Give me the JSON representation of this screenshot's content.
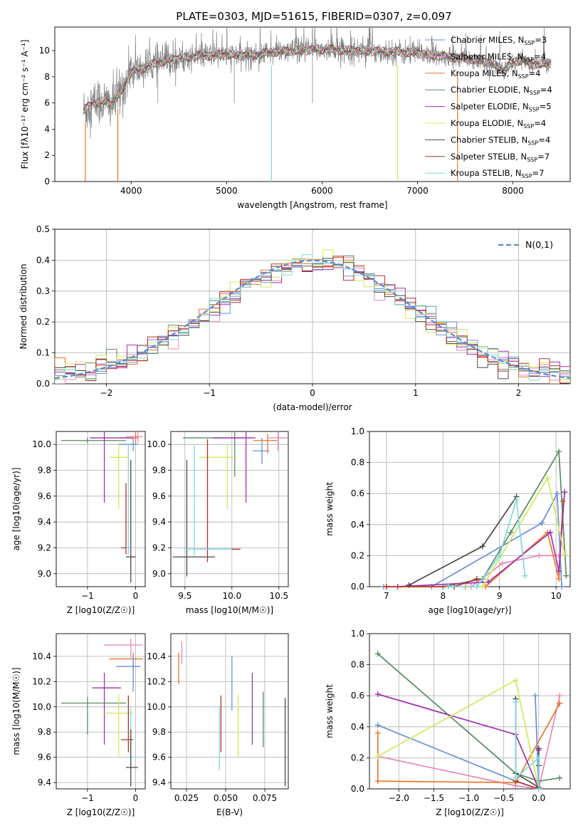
{
  "figure_title": "PLATE=0303, MJD=51615, FIBERID=0307, z=0.097",
  "colors": {
    "c1": "#6a8fd8",
    "c2": "#e887bd",
    "c3": "#e5782a",
    "c4": "#5b8a63",
    "c5": "#a130b0",
    "c6": "#d4e85a",
    "c7": "#4a4a4a",
    "c8": "#b0322b",
    "c9": "#80d8de",
    "data": "#808080",
    "normal": "#5b88d6"
  },
  "chart_data": [
    {
      "id": "spectrum",
      "type": "line",
      "xlabel": "wavelength [Angstrom, rest frame]",
      "ylabel": "Flux [fλ10⁻¹⁷ erg cm⁻² s⁻¹ A⁻¹]",
      "xlim": [
        3200,
        8600
      ],
      "ylim": [
        0,
        11.8
      ],
      "xticks": [
        4000,
        5000,
        6000,
        7000,
        8000
      ],
      "yticks": [
        0,
        2,
        4,
        6,
        8,
        10
      ],
      "grid": false,
      "legend_position": "right",
      "legend": [
        {
          "label": "Chabrier MILES, NSSP=3",
          "color": "c1"
        },
        {
          "label": "Salpeter MILES, NSSP=4",
          "color": "c2"
        },
        {
          "label": "Kroupa MILES, NSSP=4",
          "color": "c3"
        },
        {
          "label": "Chabrier ELODIE, NSSP=4",
          "color": "c4"
        },
        {
          "label": "Salpeter ELODIE, NSSP=5",
          "color": "c5"
        },
        {
          "label": "Kroupa ELODIE, NSSP=4",
          "color": "c6"
        },
        {
          "label": "Chabrier STELIB, NSSP=4",
          "color": "c7"
        },
        {
          "label": "Salpeter STELIB, NSSP=7",
          "color": "c8"
        },
        {
          "label": "Kroupa STELIB, NSSP=7",
          "color": "c9"
        }
      ],
      "spectrum_range": [
        3500,
        8400
      ],
      "continuum": [
        [
          3500,
          5.4
        ],
        [
          3600,
          6.0
        ],
        [
          3700,
          6.1
        ],
        [
          3800,
          5.9
        ],
        [
          3900,
          7.0
        ],
        [
          4000,
          8.3
        ],
        [
          4200,
          8.9
        ],
        [
          4400,
          9.3
        ],
        [
          4700,
          9.6
        ],
        [
          5000,
          9.7
        ],
        [
          5200,
          9.6
        ],
        [
          5500,
          9.9
        ],
        [
          6000,
          10.1
        ],
        [
          6400,
          10.0
        ],
        [
          6800,
          9.9
        ],
        [
          7000,
          9.8
        ],
        [
          7200,
          9.6
        ],
        [
          7500,
          9.4
        ],
        [
          7700,
          9.2
        ],
        [
          7800,
          8.9
        ],
        [
          7900,
          8.5
        ],
        [
          8000,
          9.1
        ],
        [
          8100,
          9.3
        ],
        [
          8200,
          8.9
        ],
        [
          8300,
          9.0
        ],
        [
          8400,
          9.1
        ]
      ],
      "model_dips": [
        {
          "x": 3520,
          "color": "c3"
        },
        {
          "x": 3860,
          "color": "c3"
        },
        {
          "x": 5470,
          "color": "c9"
        },
        {
          "x": 6790,
          "color": "c6"
        },
        {
          "x": 7420,
          "color": "c3"
        }
      ]
    },
    {
      "id": "residual_hist",
      "type": "histogram",
      "xlabel": "(data-model)/error",
      "ylabel": "Normed distribution",
      "xlim": [
        -2.5,
        2.5
      ],
      "ylim": [
        0,
        0.5
      ],
      "xticks": [
        -2,
        -1,
        0,
        1,
        2
      ],
      "yticks": [
        0,
        0.1,
        0.2,
        0.3,
        0.4,
        0.5
      ],
      "grid": true,
      "bin_width": 0.1,
      "reference_curve": "N(0,1)",
      "legend_position": "top-right",
      "legend": [
        {
          "label": "N(0,1)",
          "color": "normal",
          "style": "dashed"
        }
      ]
    },
    {
      "id": "age_vs_Z",
      "type": "errorbar",
      "xlabel": "Z [log10(Z/Z☉)]",
      "ylabel": "age  [log10(age/yr)]",
      "xlim": [
        -1.65,
        0.2
      ],
      "ylim": [
        8.9,
        10.1
      ],
      "xticks": [
        -1,
        0
      ],
      "yticks": [
        9.0,
        9.2,
        9.4,
        9.6,
        9.8,
        10.0
      ],
      "grid": true,
      "points": [
        {
          "color": "c1",
          "x": -0.05,
          "xl": 0.3,
          "xh": 0.1,
          "y": 10.0,
          "yl": 0.05,
          "yh": 0.05
        },
        {
          "color": "c2",
          "x": 0.05,
          "xl": 0.25,
          "xh": 0.1,
          "y": 10.06,
          "yl": 0.05,
          "yh": 0.05
        },
        {
          "color": "c3",
          "x": 0.0,
          "xl": 0.3,
          "xh": 0.05,
          "y": 10.05,
          "yl": 0.05,
          "yh": 0.05
        },
        {
          "color": "c4",
          "x": -1.0,
          "xl": 0.55,
          "xh": 0.8,
          "y": 10.03,
          "yl": 0.02,
          "yh": 0.02
        },
        {
          "color": "c5",
          "x": -0.65,
          "xl": 0.3,
          "xh": 0.6,
          "y": 10.05,
          "yl": 0.5,
          "yh": 0.05
        },
        {
          "color": "c6",
          "x": -0.35,
          "xl": 0.2,
          "xh": 0.2,
          "y": 9.9,
          "yl": 0.4,
          "yh": 0.1
        },
        {
          "color": "c7",
          "x": -0.1,
          "xl": 0.1,
          "xh": 0.1,
          "y": 9.13,
          "yl": 0.2,
          "yh": 0.75
        },
        {
          "color": "c8",
          "x": -0.2,
          "xl": 0.1,
          "xh": 0.1,
          "y": 9.2,
          "yl": 0.05,
          "yh": 0.5
        },
        {
          "color": "c9",
          "x": -0.15,
          "xl": 0.05,
          "xh": 0.05,
          "y": 9.2,
          "yl": 0.05,
          "yh": 0.8
        }
      ]
    },
    {
      "id": "age_vs_mass",
      "type": "errorbar",
      "xlabel": "mass [log10(M/M☉)]",
      "ylabel": "",
      "xlim": [
        9.35,
        10.6
      ],
      "ylim": [
        8.9,
        10.1
      ],
      "xticks": [
        9.5,
        10.0,
        10.5
      ],
      "yticks": [
        9.0,
        9.2,
        9.4,
        9.6,
        9.8,
        10.0
      ],
      "grid": true,
      "points": [
        {
          "color": "c1",
          "x": 10.32,
          "xl": 0.1,
          "xh": 0.08,
          "y": 9.95,
          "yl": 0.1,
          "yh": 0.1
        },
        {
          "color": "c2",
          "x": 10.49,
          "xl": 0.1,
          "xh": 0.1,
          "y": 10.05,
          "yl": 0.1,
          "yh": 0.05
        },
        {
          "color": "c3",
          "x": 10.38,
          "xl": 0.15,
          "xh": 0.1,
          "y": 10.03,
          "yl": 0.1,
          "yh": 0.05
        },
        {
          "color": "c4",
          "x": 10.03,
          "xl": 0.55,
          "xh": 0.1,
          "y": 10.05,
          "yl": 0.3,
          "yh": 0.05
        },
        {
          "color": "c5",
          "x": 10.15,
          "xl": 0.35,
          "xh": 0.1,
          "y": 10.05,
          "yl": 0.5,
          "yh": 0.05
        },
        {
          "color": "c6",
          "x": 9.95,
          "xl": 0.3,
          "xh": 0.1,
          "y": 9.9,
          "yl": 0.4,
          "yh": 0.1
        },
        {
          "color": "c7",
          "x": 9.52,
          "xl": 0.15,
          "xh": 0.3,
          "y": 9.13,
          "yl": 0.15,
          "yh": 0.75
        },
        {
          "color": "c8",
          "x": 9.74,
          "xl": 0.1,
          "xh": 0.35,
          "y": 9.19,
          "yl": 0.1,
          "yh": 0.85
        },
        {
          "color": "c9",
          "x": 9.6,
          "xl": 0.1,
          "xh": 0.4,
          "y": 9.19,
          "yl": 0.05,
          "yh": 0.8
        }
      ]
    },
    {
      "id": "weight_vs_age",
      "type": "line",
      "xlabel": "age  [log10(age/yr)]",
      "ylabel": "mass weight",
      "xlim": [
        6.7,
        10.25
      ],
      "ylim": [
        0,
        1.0
      ],
      "xticks": [
        7,
        8,
        9,
        10
      ],
      "yticks": [
        0,
        0.2,
        0.4,
        0.6,
        0.8,
        1.0
      ],
      "grid": true,
      "series": [
        {
          "color": "c1",
          "x": [
            6.95,
            7.8,
            9.75,
            10.02,
            10.1
          ],
          "y": [
            0.0,
            0.0,
            0.41,
            0.6,
            0.0
          ]
        },
        {
          "color": "c2",
          "x": [
            8.5,
            9.05,
            9.7,
            10.05
          ],
          "y": [
            0.0,
            0.15,
            0.2,
            0.2
          ]
        },
        {
          "color": "c3",
          "x": [
            8.4,
            8.75,
            9.85,
            10.05,
            10.12
          ],
          "y": [
            0.0,
            0.0,
            0.35,
            0.05,
            0.55
          ]
        },
        {
          "color": "c4",
          "x": [
            8.0,
            8.7,
            9.2,
            10.05,
            10.18
          ],
          "y": [
            0.0,
            0.05,
            0.35,
            0.87,
            0.07
          ]
        },
        {
          "color": "c5",
          "x": [
            7.2,
            8.8,
            9.9,
            10.05,
            10.15
          ],
          "y": [
            0.0,
            0.03,
            0.35,
            0.1,
            0.61
          ]
        },
        {
          "color": "c6",
          "x": [
            7.0,
            8.7,
            9.85,
            10.15
          ],
          "y": [
            0.0,
            0.0,
            0.7,
            0.21
          ]
        },
        {
          "color": "c7",
          "x": [
            7.4,
            8.7,
            9.3
          ],
          "y": [
            0.01,
            0.26,
            0.58
          ]
        },
        {
          "color": "c8",
          "x": [
            7.0,
            8.2,
            8.6
          ],
          "y": [
            0.0,
            0.0,
            0.05
          ]
        },
        {
          "color": "c9",
          "x": [
            8.1,
            8.6,
            9.0,
            9.3,
            9.45
          ],
          "y": [
            0.0,
            0.0,
            0.2,
            0.56,
            0.07
          ]
        }
      ]
    },
    {
      "id": "mass_vs_Z",
      "type": "errorbar",
      "xlabel": "Z [log10(Z/Z☉)]",
      "ylabel": "mass [log10(M/M☉)]",
      "xlim": [
        -1.65,
        0.2
      ],
      "ylim": [
        9.35,
        10.58
      ],
      "xticks": [
        -1,
        0
      ],
      "yticks": [
        9.4,
        9.6,
        9.8,
        10.0,
        10.2,
        10.4
      ],
      "grid": true,
      "points": [
        {
          "color": "c2",
          "x": -0.1,
          "xl": 0.55,
          "xh": 0.25,
          "y": 10.49,
          "yl": 0.1,
          "yh": 0.05
        },
        {
          "color": "c3",
          "x": -0.05,
          "xl": 0.5,
          "xh": 0.2,
          "y": 10.38,
          "yl": 0.1,
          "yh": 0.05
        },
        {
          "color": "c1",
          "x": -0.05,
          "xl": 0.35,
          "xh": 0.15,
          "y": 10.32,
          "yl": 0.2,
          "yh": 0.08
        },
        {
          "color": "c5",
          "x": -0.65,
          "xl": 0.25,
          "xh": 0.35,
          "y": 10.15,
          "yl": 0.45,
          "yh": 0.12
        },
        {
          "color": "c4",
          "x": -1.0,
          "xl": 0.55,
          "xh": 0.8,
          "y": 10.03,
          "yl": 0.25,
          "yh": 0.05
        },
        {
          "color": "c6",
          "x": -0.35,
          "xl": 0.3,
          "xh": 0.3,
          "y": 9.95,
          "yl": 0.35,
          "yh": 0.15
        },
        {
          "color": "c8",
          "x": -0.15,
          "xl": 0.15,
          "xh": 0.1,
          "y": 9.74,
          "yl": 0.1,
          "yh": 0.35
        },
        {
          "color": "c9",
          "x": -0.1,
          "xl": 0.1,
          "xh": 0.1,
          "y": 9.6,
          "yl": 0.1,
          "yh": 0.4
        },
        {
          "color": "c7",
          "x": -0.1,
          "xl": 0.1,
          "xh": 0.15,
          "y": 9.52,
          "yl": 0.15,
          "yh": 0.3
        }
      ]
    },
    {
      "id": "mass_vs_EBV",
      "type": "errorbar",
      "xlabel": "E(B-V)",
      "ylabel": "",
      "xlim": [
        0.015,
        0.09
      ],
      "ylim": [
        9.35,
        10.58
      ],
      "xticks": [
        0.025,
        0.05,
        0.075
      ],
      "yticks": [
        9.4,
        9.6,
        9.8,
        10.0,
        10.2,
        10.4
      ],
      "grid": true,
      "points": [
        {
          "color": "c3",
          "x": 0.02,
          "xl": 0,
          "xh": 0,
          "y": 10.38,
          "yl": 0.2,
          "yh": 0.05
        },
        {
          "color": "c2",
          "x": 0.022,
          "xl": 0,
          "xh": 0,
          "y": 10.49,
          "yl": 0.15,
          "yh": 0.03
        },
        {
          "color": "c9",
          "x": 0.046,
          "xl": 0,
          "xh": 0,
          "y": 9.6,
          "yl": 0.1,
          "yh": 0.4
        },
        {
          "color": "c8",
          "x": 0.047,
          "xl": 0,
          "xh": 0,
          "y": 9.74,
          "yl": 0.1,
          "yh": 0.35
        },
        {
          "color": "c1",
          "x": 0.054,
          "xl": 0,
          "xh": 0,
          "y": 10.32,
          "yl": 0.35,
          "yh": 0.08
        },
        {
          "color": "c6",
          "x": 0.058,
          "xl": 0,
          "xh": 0,
          "y": 9.95,
          "yl": 0.35,
          "yh": 0.15
        },
        {
          "color": "c5",
          "x": 0.067,
          "xl": 0,
          "xh": 0,
          "y": 10.15,
          "yl": 0.45,
          "yh": 0.12
        },
        {
          "color": "c4",
          "x": 0.074,
          "xl": 0,
          "xh": 0,
          "y": 10.03,
          "yl": 0.35,
          "yh": 0.09
        },
        {
          "color": "c7",
          "x": 0.088,
          "xl": 0,
          "xh": 0,
          "y": 9.52,
          "yl": 0.15,
          "yh": 0.55
        }
      ]
    },
    {
      "id": "weight_vs_Z",
      "type": "line",
      "xlabel": "Z [log10(Z/Z☉)]",
      "ylabel": "mass weight",
      "xlim": [
        -2.42,
        0.45
      ],
      "ylim": [
        0,
        1.0
      ],
      "xticks": [
        -2.0,
        -1.5,
        -1.0,
        -0.5,
        0.0
      ],
      "yticks": [
        0,
        0.2,
        0.4,
        0.6,
        0.8,
        1.0
      ],
      "grid": true,
      "series": [
        {
          "color": "c1",
          "x": [
            -2.3,
            -0.33,
            0.0,
            -0.05
          ],
          "y": [
            0.41,
            0.05,
            0.0,
            0.6
          ]
        },
        {
          "color": "c2",
          "x": [
            -2.3,
            -0.33,
            0.0,
            0.3
          ],
          "y": [
            0.21,
            0.02,
            0.0,
            0.6
          ]
        },
        {
          "color": "c3",
          "x": [
            -2.3,
            -2.3,
            -0.33,
            0.3,
            0.3
          ],
          "y": [
            0.36,
            0.05,
            0.04,
            0.55,
            0.55
          ]
        },
        {
          "color": "c4",
          "x": [
            -2.3,
            -0.33,
            0.0,
            0.3
          ],
          "y": [
            0.87,
            0.1,
            0.05,
            0.07
          ]
        },
        {
          "color": "c5",
          "x": [
            -2.3,
            -0.33,
            0.0,
            0.0
          ],
          "y": [
            0.61,
            0.35,
            0.0,
            0.25
          ]
        },
        {
          "color": "c6",
          "x": [
            -2.3,
            -0.33,
            0.0
          ],
          "y": [
            0.21,
            0.7,
            0.0
          ]
        },
        {
          "color": "c7",
          "x": [
            -0.33,
            -0.33,
            0.0,
            0.0,
            0.0
          ],
          "y": [
            0.58,
            0.1,
            0.01,
            0.26,
            0.15
          ]
        },
        {
          "color": "c8",
          "x": [
            -0.33,
            0.0
          ],
          "y": [
            0.05,
            0.0
          ]
        },
        {
          "color": "c9",
          "x": [
            -0.33,
            -0.33,
            0.0,
            0.0
          ],
          "y": [
            0.56,
            0.07,
            0.2,
            0.0
          ]
        }
      ]
    }
  ]
}
